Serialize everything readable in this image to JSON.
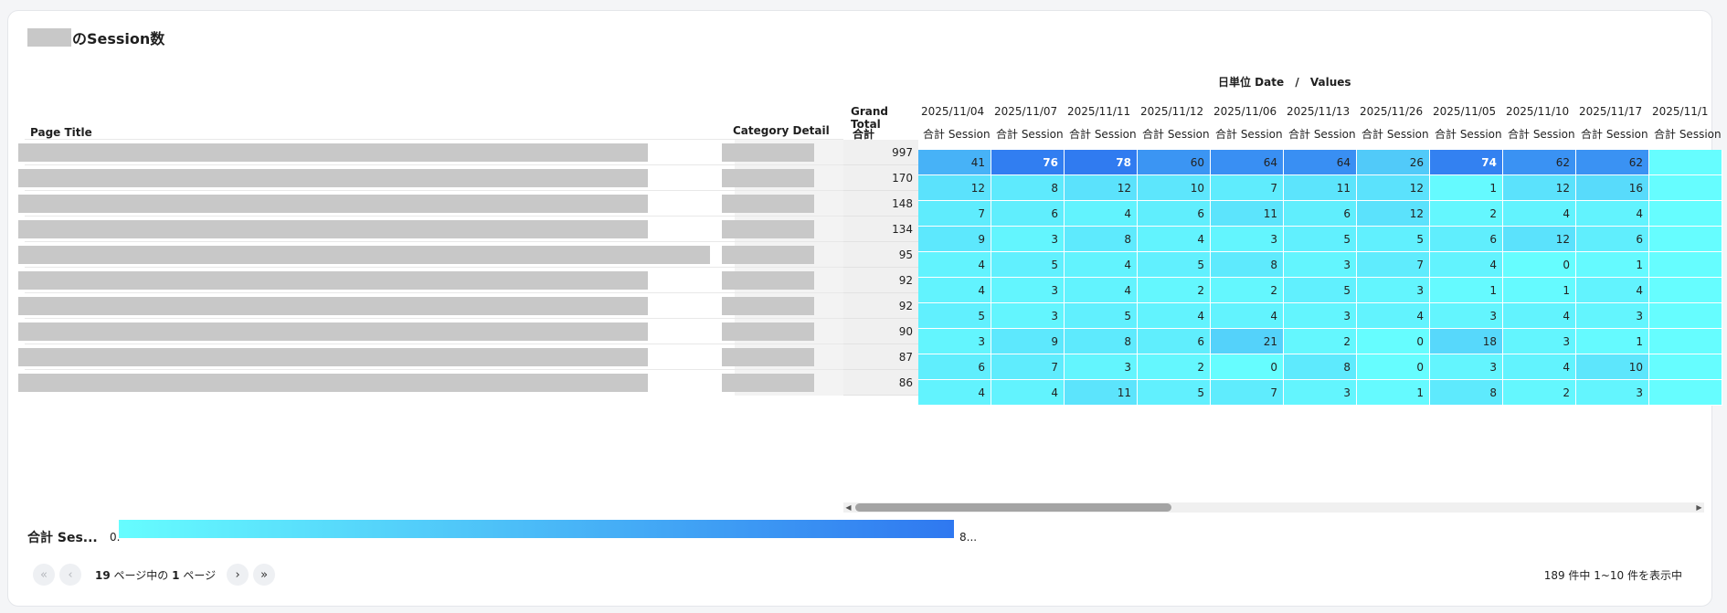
{
  "title": {
    "suffix": "のSession数"
  },
  "header": {
    "date_label": "日単位 Date",
    "sep": "/",
    "values_label": "Values"
  },
  "columns": {
    "page_title": "Page Title",
    "category_detail": "Category Detail",
    "grand_total": "Grand Total",
    "metric": "合計 Session",
    "dates": [
      "2025/11/04",
      "2025/11/07",
      "2025/11/11",
      "2025/11/12",
      "2025/11/06",
      "2025/11/13",
      "2025/11/26",
      "2025/11/05",
      "2025/11/10",
      "2025/11/17",
      "2025/11/1"
    ]
  },
  "rows": [
    {
      "total": "997",
      "values": [
        "41",
        "76",
        "78",
        "60",
        "64",
        "64",
        "26",
        "74",
        "62",
        "62",
        ""
      ]
    },
    {
      "total": "170",
      "values": [
        "12",
        "8",
        "12",
        "10",
        "7",
        "11",
        "12",
        "1",
        "12",
        "16",
        ""
      ]
    },
    {
      "total": "148",
      "values": [
        "7",
        "6",
        "4",
        "6",
        "11",
        "6",
        "12",
        "2",
        "4",
        "4",
        ""
      ]
    },
    {
      "total": "134",
      "values": [
        "9",
        "3",
        "8",
        "4",
        "3",
        "5",
        "5",
        "6",
        "12",
        "6",
        ""
      ]
    },
    {
      "total": "95",
      "values": [
        "4",
        "5",
        "4",
        "5",
        "8",
        "3",
        "7",
        "4",
        "0",
        "1",
        ""
      ]
    },
    {
      "total": "92",
      "values": [
        "4",
        "3",
        "4",
        "2",
        "2",
        "5",
        "3",
        "1",
        "1",
        "4",
        ""
      ]
    },
    {
      "total": "92",
      "values": [
        "5",
        "3",
        "5",
        "4",
        "4",
        "3",
        "4",
        "3",
        "4",
        "3",
        ""
      ]
    },
    {
      "total": "90",
      "values": [
        "3",
        "9",
        "8",
        "6",
        "21",
        "2",
        "0",
        "18",
        "3",
        "1",
        ""
      ]
    },
    {
      "total": "87",
      "values": [
        "6",
        "7",
        "3",
        "2",
        "0",
        "8",
        "0",
        "3",
        "4",
        "10",
        ""
      ]
    },
    {
      "total": "86",
      "values": [
        "4",
        "4",
        "11",
        "5",
        "7",
        "3",
        "1",
        "8",
        "2",
        "3",
        ""
      ]
    }
  ],
  "legend": {
    "label": "合計 Ses...",
    "min": "0.",
    "max": "8...",
    "color_low": "#66fdff",
    "color_high": "#2f78f0"
  },
  "pager": {
    "total_pages": "19",
    "pages_text": "ページ中の",
    "current_page": "1",
    "page_text": "ページ"
  },
  "count_text": "189 件中 1~10 件を表示中",
  "icons": {
    "first": "double-chevron-left-icon",
    "prev": "chevron-left-icon",
    "next": "chevron-right-icon",
    "last": "double-chevron-right-icon"
  }
}
